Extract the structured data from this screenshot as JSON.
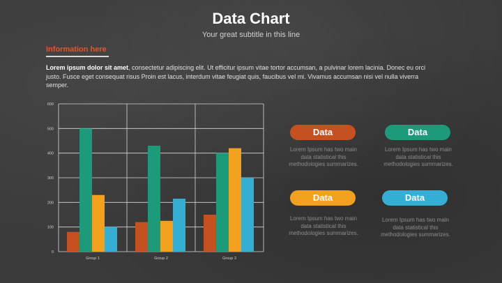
{
  "slide": {
    "title": "Data Chart",
    "subtitle": "Your great subtitle in this line"
  },
  "info": {
    "heading": "Information here",
    "body_bold": "Lorem ipsum dolor sit amet",
    "body_rest": ", consectetur adipiscing elit. Ut efficitur ipsum vitae tortor accumsan, a pulvinar lorem lacinia. Donec eu orci justo. Fusce eget consequat risus Proin est lacus, interdum vitae feugiat quis, faucibus vel mi.  Vivamus accumsan nisi vel nulla viverra semper."
  },
  "cards": [
    {
      "label": "Data",
      "text": "Lorem Ipsum has two main data statistical this methodologies summarizes.",
      "color": "#c4511f"
    },
    {
      "label": "Data",
      "text": "Lorem Ipsum has two main data statistical this methodologies summarizes.",
      "color": "#1d9a7a"
    },
    {
      "label": "Data",
      "text": "Lorem Ipsum has two main data statistical this methodologies summarizes.",
      "color": "#f2a11f"
    },
    {
      "label": "Data",
      "text": "Lorem Ipsum has two main data statistical this methodologies summarizes.",
      "color": "#35aed3"
    }
  ],
  "chart_data": {
    "type": "bar",
    "categories": [
      "Group 1",
      "Group 2",
      "Group 3"
    ],
    "series": [
      {
        "values": [
          80,
          120,
          150
        ],
        "color": "#c4511f"
      },
      {
        "values": [
          500,
          430,
          400
        ],
        "color": "#1d9a7a"
      },
      {
        "values": [
          230,
          125,
          420
        ],
        "color": "#f2a11f"
      },
      {
        "values": [
          100,
          215,
          300
        ],
        "color": "#35aed3"
      }
    ],
    "ylim": [
      0,
      600
    ],
    "yticks": [
      0,
      100,
      200,
      300,
      400,
      500,
      600
    ],
    "grid": true,
    "xlabel": "",
    "ylabel": ""
  }
}
